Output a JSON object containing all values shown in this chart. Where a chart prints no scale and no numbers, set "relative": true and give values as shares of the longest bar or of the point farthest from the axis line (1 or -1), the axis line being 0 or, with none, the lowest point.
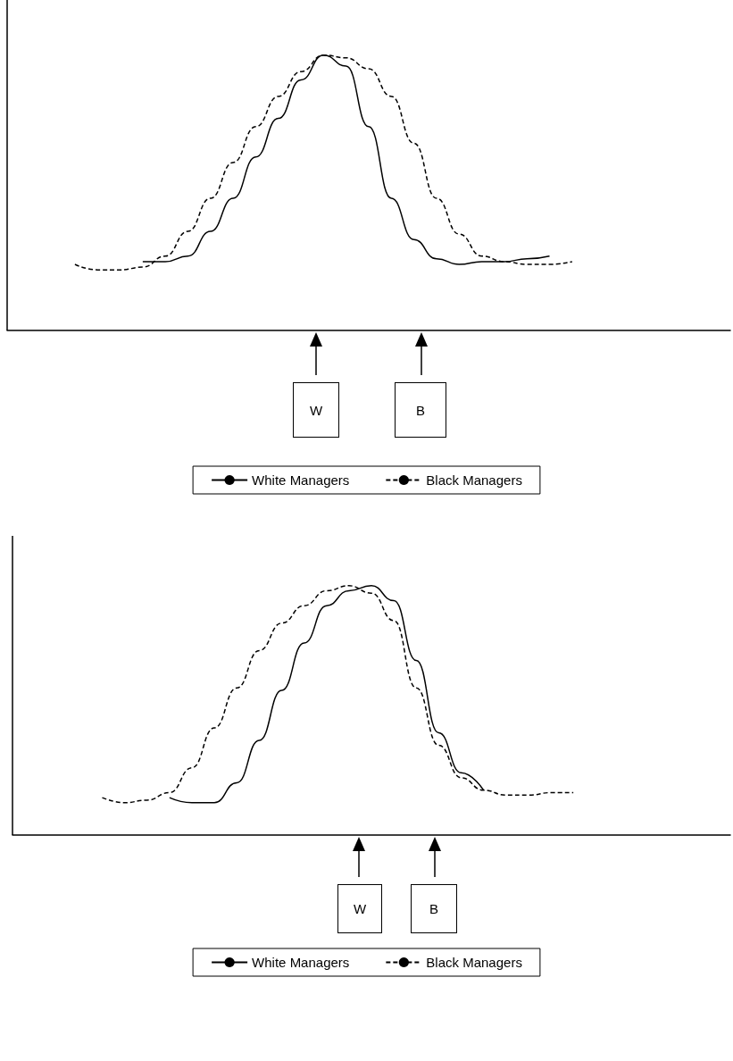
{
  "chart_data": [
    {
      "type": "line",
      "relative": true,
      "legend": "bottom",
      "annotations": [
        "W",
        "B"
      ],
      "categories": [
        null,
        null,
        null,
        null,
        null,
        null,
        null,
        null,
        null,
        null,
        null,
        null,
        null,
        null,
        null,
        null,
        null,
        null,
        null,
        null,
        null,
        null,
        null,
        null,
        null,
        null,
        null,
        null,
        null,
        null,
        null,
        null,
        null
      ],
      "series": [
        {
          "name": "White Managers",
          "color": "#000000",
          "line_style": "solid",
          "values": [
            null,
            null,
            null,
            null,
            null,
            null,
            0.25,
            0.25,
            0.27,
            0.36,
            0.48,
            0.63,
            0.77,
            0.91,
            1,
            0.96,
            0.74,
            0.48,
            0.33,
            0.26,
            0.24,
            0.25,
            0.25,
            0.26,
            0.27,
            null,
            null,
            null,
            null,
            null,
            null,
            null,
            null
          ]
        },
        {
          "name": "Black Managers",
          "color": "#000000",
          "line_style": "dashed",
          "values": [
            null,
            null,
            null,
            0.24,
            0.22,
            0.22,
            0.23,
            0.27,
            0.36,
            0.48,
            0.61,
            0.74,
            0.85,
            0.94,
            1,
            0.99,
            0.95,
            0.85,
            0.68,
            0.48,
            0.35,
            0.27,
            0.25,
            0.24,
            0.24,
            0.25,
            null,
            null,
            null,
            null,
            null,
            null,
            null
          ]
        }
      ]
    },
    {
      "type": "line",
      "relative": true,
      "legend": "bottom",
      "annotations": [
        "W",
        "B"
      ],
      "categories": [
        null,
        null,
        null,
        null,
        null,
        null,
        null,
        null,
        null,
        null,
        null,
        null,
        null,
        null,
        null,
        null,
        null,
        null,
        null,
        null,
        null,
        null,
        null,
        null,
        null,
        null,
        null,
        null,
        null,
        null,
        null,
        null,
        null
      ],
      "series": [
        {
          "name": "White Managers",
          "color": "#000000",
          "line_style": "solid",
          "values": [
            null,
            null,
            null,
            null,
            null,
            null,
            null,
            0.15,
            0.13,
            0.13,
            0.21,
            0.38,
            0.58,
            0.77,
            0.92,
            0.98,
            1,
            0.94,
            0.7,
            0.41,
            0.25,
            0.18,
            null,
            null,
            null,
            null,
            null,
            null,
            null,
            null,
            null,
            null,
            null
          ]
        },
        {
          "name": "Black Managers",
          "color": "#000000",
          "line_style": "dashed",
          "values": [
            null,
            null,
            null,
            null,
            0.15,
            0.13,
            0.14,
            0.17,
            0.27,
            0.43,
            0.59,
            0.74,
            0.85,
            0.92,
            0.98,
            1,
            0.97,
            0.86,
            0.59,
            0.36,
            0.23,
            0.18,
            0.16,
            0.16,
            0.17,
            0.17,
            null,
            null,
            null,
            null,
            null,
            null,
            null
          ]
        }
      ]
    }
  ]
}
